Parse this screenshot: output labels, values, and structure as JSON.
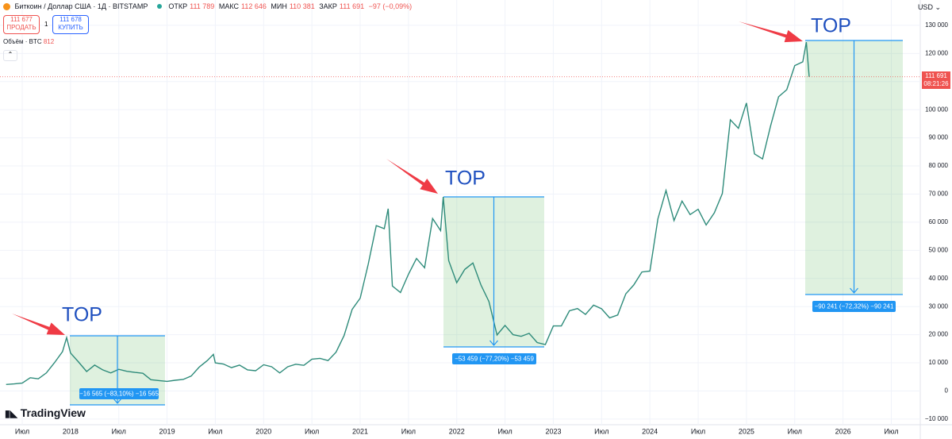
{
  "header": {
    "symbol": "Биткоин / Доллар США · 1Д · BITSTAMP",
    "open_label": "ОТКР",
    "open": "111 789",
    "high_label": "МАКС",
    "high": "112 646",
    "low_label": "МИН",
    "low": "110 381",
    "close_label": "ЗАКР",
    "close": "111 691",
    "change": "−97 (−0,09%)",
    "sell_price": "111 677",
    "sell": "ПРОДАТЬ",
    "spread": "1",
    "buy_price": "111 678",
    "buy": "КУПИТЬ",
    "volume_label": "Объём · BTC",
    "volume": "812",
    "currency": "USD",
    "price_tag": "111 691",
    "countdown": "08:21:26",
    "brand": "TradingView"
  },
  "chart_data": {
    "type": "line",
    "color": "#2e8b7a",
    "x": [
      2017.333,
      2017.417,
      2017.5,
      2017.583,
      2017.667,
      2017.75,
      2017.833,
      2017.917,
      2017.96,
      2018.0,
      2018.083,
      2018.167,
      2018.25,
      2018.333,
      2018.417,
      2018.5,
      2018.583,
      2018.667,
      2018.75,
      2018.833,
      2018.917,
      2019.0,
      2019.083,
      2019.167,
      2019.25,
      2019.333,
      2019.417,
      2019.48,
      2019.5,
      2019.583,
      2019.667,
      2019.75,
      2019.833,
      2019.917,
      2020.0,
      2020.083,
      2020.167,
      2020.25,
      2020.333,
      2020.417,
      2020.5,
      2020.583,
      2020.667,
      2020.75,
      2020.833,
      2020.917,
      2021.0,
      2021.083,
      2021.167,
      2021.25,
      2021.29,
      2021.333,
      2021.417,
      2021.5,
      2021.583,
      2021.667,
      2021.75,
      2021.833,
      2021.86,
      2021.917,
      2022.0,
      2022.083,
      2022.167,
      2022.25,
      2022.333,
      2022.417,
      2022.5,
      2022.583,
      2022.667,
      2022.75,
      2022.833,
      2022.917,
      2023.0,
      2023.083,
      2023.167,
      2023.25,
      2023.333,
      2023.417,
      2023.5,
      2023.583,
      2023.667,
      2023.75,
      2023.833,
      2023.917,
      2024.0,
      2024.083,
      2024.167,
      2024.25,
      2024.333,
      2024.417,
      2024.5,
      2024.583,
      2024.667,
      2024.75,
      2024.833,
      2024.917,
      2025.0,
      2025.083,
      2025.167,
      2025.25,
      2025.333,
      2025.417,
      2025.5,
      2025.583,
      2025.62,
      2025.65
    ],
    "values": [
      2300,
      2500,
      2800,
      4700,
      4300,
      6400,
      10000,
      14000,
      19000,
      13500,
      10300,
      6900,
      9200,
      7500,
      6400,
      7700,
      7000,
      6600,
      6300,
      4000,
      3700,
      3400,
      3800,
      4100,
      5300,
      8500,
      10800,
      13000,
      10000,
      9600,
      8300,
      9200,
      7500,
      7200,
      9300,
      8600,
      6400,
      8600,
      9500,
      9100,
      11300,
      11600,
      10800,
      13800,
      19700,
      29000,
      33000,
      45000,
      58800,
      57700,
      64800,
      37300,
      35000,
      41500,
      47100,
      43800,
      61300,
      57000,
      69000,
      46300,
      38500,
      43200,
      45500,
      37700,
      31800,
      19900,
      23300,
      20000,
      19400,
      20500,
      17200,
      16500,
      23100,
      23100,
      28500,
      29300,
      27200,
      30500,
      29200,
      26000,
      27000,
      34500,
      37700,
      42300,
      42600,
      61200,
      71300,
      60600,
      67500,
      62700,
      64600,
      59000,
      63300,
      70200,
      96400,
      93400,
      102400,
      84300,
      82500,
      94200,
      104600,
      107100,
      115700,
      117000,
      124000,
      111691
    ],
    "xlim": [
      2017.27,
      2026.8
    ],
    "ylim": [
      -12000,
      139000
    ],
    "xticks": [
      {
        "value": 2017.5,
        "label": "Июл"
      },
      2018,
      {
        "value": 2018.5,
        "label": "Июл"
      },
      2019,
      {
        "value": 2019.5,
        "label": "Июл"
      },
      2020,
      {
        "value": 2020.5,
        "label": "Июл"
      },
      2021,
      {
        "value": 2021.5,
        "label": "Июл"
      },
      2022,
      {
        "value": 2022.5,
        "label": "Июл"
      },
      2023,
      {
        "value": 2023.5,
        "label": "Июл"
      },
      2024,
      {
        "value": 2024.5,
        "label": "Июл"
      },
      2025,
      {
        "value": 2025.5,
        "label": "Июл"
      },
      2026,
      {
        "value": 2026.5,
        "label": "Июл"
      }
    ],
    "yticks": [
      {
        "value": -10000,
        "label": "−10 000"
      },
      0,
      {
        "value": 10000,
        "label": "10 000"
      },
      {
        "value": 20000,
        "label": "20 000"
      },
      {
        "value": 30000,
        "label": "30 000"
      },
      {
        "value": 40000,
        "label": "40 000"
      },
      {
        "value": 50000,
        "label": "50 000"
      },
      {
        "value": 60000,
        "label": "60 000"
      },
      {
        "value": 70000,
        "label": "70 000"
      },
      {
        "value": 80000,
        "label": "80 000"
      },
      {
        "value": 90000,
        "label": "90 000"
      },
      {
        "value": 100000,
        "label": "100 000"
      },
      {
        "value": 110000,
        "label": "110 000"
      },
      {
        "value": 120000,
        "label": "120 000"
      },
      {
        "value": 130000,
        "label": "130 000"
      }
    ],
    "grid": true,
    "annotations": [
      {
        "text": "TOP",
        "range": "−16 565 (−83,10%) −16 565"
      },
      {
        "text": "TOP",
        "range": "−53 459 (−77,20%) −53 459"
      },
      {
        "text": "TOP",
        "range": "−90 241 (−72,32%) −90 241"
      }
    ]
  }
}
